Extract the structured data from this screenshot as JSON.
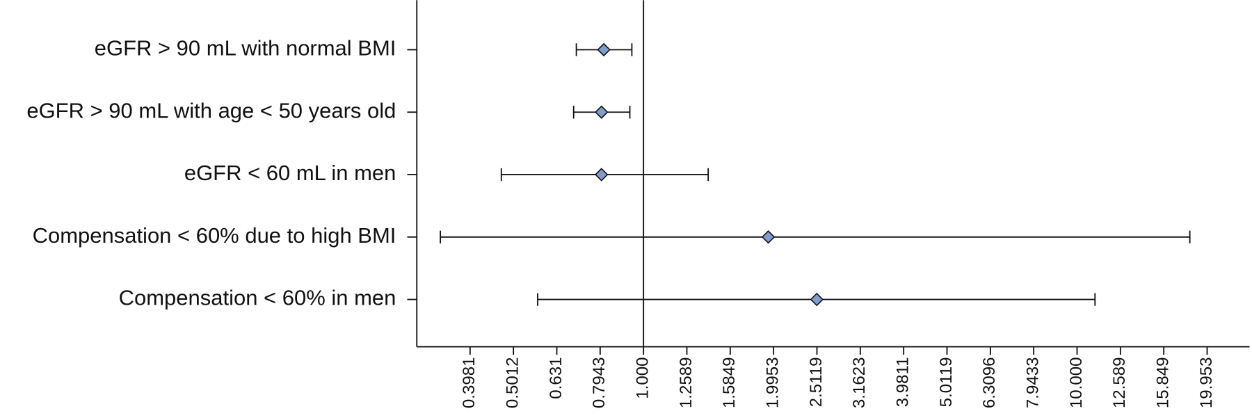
{
  "chart_data": {
    "type": "forest",
    "categories": [
      "eGFR > 90 mL with normal BMI",
      "eGFR > 90 mL with age < 50 years old",
      "eGFR < 60 mL in men",
      "Compensation < 60% due to high BMI",
      "Compensation < 60% in men"
    ],
    "values": [
      0.81,
      0.8,
      0.8,
      1.94,
      2.51
    ],
    "lower": [
      0.7,
      0.69,
      0.47,
      0.34,
      0.57
    ],
    "upper": [
      0.94,
      0.93,
      1.41,
      18.2,
      11.0
    ],
    "color": "#7f9ccc",
    "x_scale": "log",
    "xlim": [
      0.3,
      25
    ],
    "xticks": [
      0.3981,
      0.5012,
      0.631,
      0.7943,
      {
        "value": 1,
        "label": "1.000"
      },
      1.2589,
      1.5849,
      1.9953,
      2.5119,
      3.1623,
      3.9811,
      5.0119,
      6.3096,
      7.9433,
      {
        "value": 10,
        "label": "10.000"
      },
      12.589,
      15.849,
      19.953
    ],
    "reference_value": 1
  }
}
